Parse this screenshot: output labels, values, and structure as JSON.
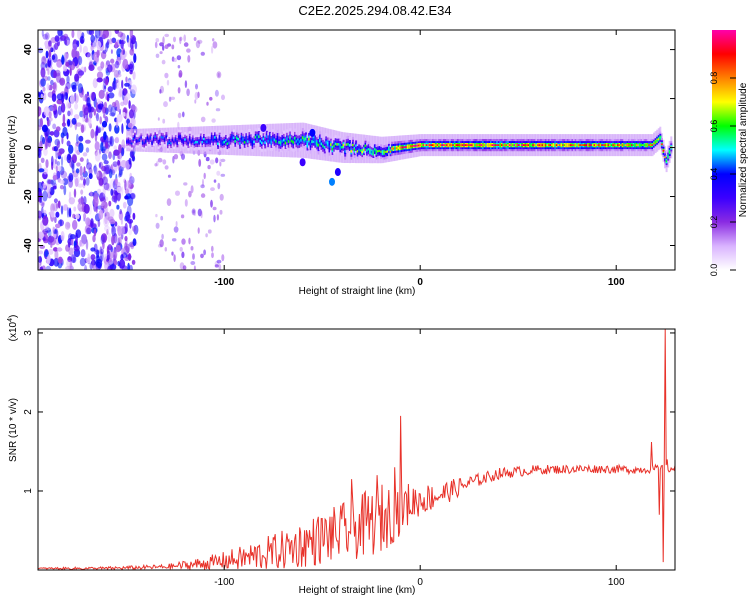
{
  "title": "C2E2.2025.294.08.42.E34",
  "chart_data": [
    {
      "type": "heatmap",
      "xlabel": "Height of straight line (km)",
      "ylabel": "Frequency (Hz)",
      "xlim": [
        -195,
        130
      ],
      "ylim": [
        -50,
        48
      ],
      "xticks": [
        -100,
        0,
        100
      ],
      "xtick_labels": [
        "-100",
        "0",
        "100"
      ],
      "yticks": [
        -40,
        -20,
        0,
        20,
        40
      ],
      "ytick_labels": [
        "-40",
        "-20",
        "0",
        "20",
        "40"
      ],
      "colorbar": {
        "label": "Normalized spectral amplitude",
        "range": [
          0.0,
          1.0
        ],
        "ticks": [
          0.0,
          0.2,
          0.4,
          0.6,
          0.8
        ],
        "tick_labels": [
          "0.0",
          "0.2",
          "0.4",
          "0.6",
          "0.8"
        ],
        "colormap": [
          "#ffffff",
          "#d9b3ff",
          "#8a2be2",
          "#3b00ff",
          "#0000ff",
          "#00ffff",
          "#00ff00",
          "#ffff00",
          "#ff8000",
          "#ff0000",
          "#ff00aa"
        ]
      },
      "ridge": {
        "description": "Narrowband signal centered near 2 Hz",
        "x_start": -150,
        "x_end": 128,
        "center_frequency": [
          [
            -150,
            3
          ],
          [
            -100,
            3
          ],
          [
            -60,
            3
          ],
          [
            -40,
            0
          ],
          [
            -20,
            -1
          ],
          [
            0,
            1
          ],
          [
            50,
            1
          ],
          [
            100,
            1
          ],
          [
            118,
            1
          ],
          [
            122,
            4
          ],
          [
            125,
            -6
          ],
          [
            128,
            1
          ]
        ],
        "half_width": [
          [
            -150,
            2.5
          ],
          [
            -60,
            4
          ],
          [
            -20,
            3
          ],
          [
            0,
            2.5
          ],
          [
            128,
            2.5
          ]
        ],
        "peak_amplitude": [
          [
            -150,
            0.35
          ],
          [
            -80,
            0.5
          ],
          [
            -40,
            0.55
          ],
          [
            -20,
            0.6
          ],
          [
            -10,
            0.85
          ],
          [
            0,
            0.8
          ],
          [
            20,
            0.85
          ],
          [
            100,
            0.75
          ],
          [
            128,
            0.7
          ]
        ]
      },
      "noise_region": {
        "x_start": -195,
        "x_end": -145,
        "frequency_range": [
          -50,
          48
        ],
        "typical_amplitude": 0.3
      }
    },
    {
      "type": "line",
      "xlabel": "Height of straight line (km)",
      "ylabel": "SNR (10 * v/v)",
      "y_scale_label": "(x10",
      "y_scale_exponent": "4",
      "xlim": [
        -195,
        130
      ],
      "ylim": [
        0,
        3.05
      ],
      "xticks": [
        -100,
        0,
        100
      ],
      "xtick_labels": [
        "-100",
        "0",
        "100"
      ],
      "yticks": [
        1,
        2,
        3
      ],
      "ytick_labels": [
        "1",
        "2",
        "3"
      ],
      "series": [
        {
          "name": "SNR",
          "color": "#e8322a",
          "envelope": [
            [
              -195,
              0.02
            ],
            [
              -160,
              0.02
            ],
            [
              -130,
              0.04
            ],
            [
              -110,
              0.08
            ],
            [
              -90,
              0.15
            ],
            [
              -70,
              0.25
            ],
            [
              -50,
              0.4
            ],
            [
              -30,
              0.55
            ],
            [
              -15,
              0.7
            ],
            [
              -5,
              0.85
            ],
            [
              10,
              0.95
            ],
            [
              25,
              1.1
            ],
            [
              40,
              1.22
            ],
            [
              60,
              1.27
            ],
            [
              90,
              1.28
            ],
            [
              110,
              1.27
            ],
            [
              120,
              1.28
            ],
            [
              130,
              1.28
            ]
          ],
          "noise_amplitude": [
            [
              -195,
              0.01
            ],
            [
              -130,
              0.03
            ],
            [
              -100,
              0.12
            ],
            [
              -60,
              0.3
            ],
            [
              -20,
              0.45
            ],
            [
              0,
              0.2
            ],
            [
              30,
              0.08
            ],
            [
              60,
              0.06
            ],
            [
              120,
              0.05
            ],
            [
              130,
              0.05
            ]
          ],
          "spikes": [
            [
              -10,
              1.95
            ],
            [
              -13,
              1.3
            ],
            [
              -22,
              1.2
            ],
            [
              -35,
              1.15
            ],
            [
              118,
              1.62
            ],
            [
              122,
              0.7
            ],
            [
              124,
              0.1
            ],
            [
              125,
              3.05
            ],
            [
              126,
              1.4
            ]
          ]
        }
      ]
    }
  ]
}
